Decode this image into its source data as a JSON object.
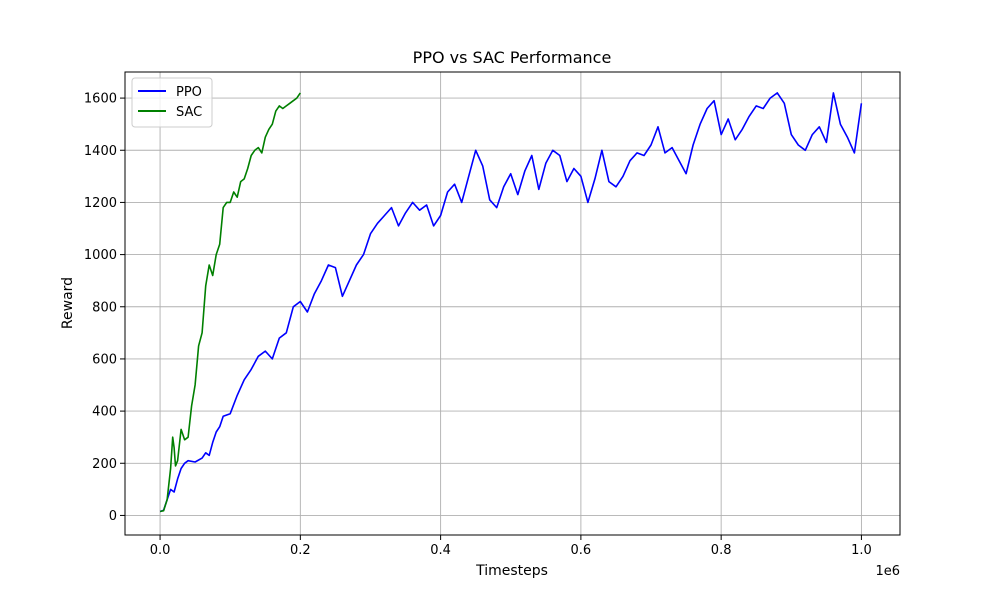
{
  "chart_data": {
    "type": "line",
    "title": "PPO vs SAC Performance",
    "xlabel": "Timesteps",
    "ylabel": "Reward",
    "x_offset_label": "1e6",
    "xlim": [
      -0.05,
      1.055
    ],
    "ylim": [
      -75,
      1700
    ],
    "x_scale_factor": 1000000,
    "xticks": [
      0.0,
      0.2,
      0.4,
      0.6,
      0.8,
      1.0
    ],
    "xtick_labels": [
      "0.0",
      "0.2",
      "0.4",
      "0.6",
      "0.8",
      "1.0"
    ],
    "yticks": [
      0,
      200,
      400,
      600,
      800,
      1000,
      1200,
      1400,
      1600
    ],
    "ytick_labels": [
      "0",
      "200",
      "400",
      "600",
      "800",
      "1000",
      "1200",
      "1400",
      "1600"
    ],
    "grid": true,
    "legend_position": "top-left",
    "series": [
      {
        "name": "PPO",
        "color": "#0000ff",
        "x": [
          0.0,
          0.005,
          0.01,
          0.015,
          0.02,
          0.025,
          0.03,
          0.035,
          0.04,
          0.05,
          0.06,
          0.065,
          0.07,
          0.075,
          0.08,
          0.085,
          0.09,
          0.1,
          0.11,
          0.12,
          0.13,
          0.14,
          0.15,
          0.16,
          0.17,
          0.18,
          0.19,
          0.2,
          0.21,
          0.22,
          0.23,
          0.24,
          0.25,
          0.26,
          0.27,
          0.28,
          0.29,
          0.3,
          0.31,
          0.32,
          0.33,
          0.34,
          0.35,
          0.36,
          0.37,
          0.38,
          0.39,
          0.4,
          0.41,
          0.42,
          0.43,
          0.44,
          0.45,
          0.46,
          0.47,
          0.48,
          0.49,
          0.5,
          0.51,
          0.52,
          0.53,
          0.54,
          0.55,
          0.56,
          0.57,
          0.58,
          0.59,
          0.6,
          0.61,
          0.62,
          0.63,
          0.64,
          0.65,
          0.66,
          0.67,
          0.68,
          0.69,
          0.7,
          0.71,
          0.72,
          0.73,
          0.74,
          0.75,
          0.76,
          0.77,
          0.78,
          0.79,
          0.8,
          0.81,
          0.82,
          0.83,
          0.84,
          0.85,
          0.86,
          0.87,
          0.88,
          0.89,
          0.9,
          0.91,
          0.92,
          0.93,
          0.94,
          0.95,
          0.96,
          0.97,
          0.98,
          0.99,
          1.0
        ],
        "y": [
          15,
          20,
          60,
          100,
          90,
          140,
          180,
          200,
          210,
          205,
          220,
          240,
          230,
          280,
          320,
          340,
          380,
          390,
          460,
          520,
          560,
          610,
          630,
          600,
          680,
          700,
          800,
          820,
          780,
          850,
          900,
          960,
          950,
          840,
          900,
          960,
          1000,
          1080,
          1120,
          1150,
          1180,
          1110,
          1160,
          1200,
          1170,
          1190,
          1110,
          1150,
          1240,
          1270,
          1200,
          1300,
          1400,
          1340,
          1210,
          1180,
          1260,
          1310,
          1230,
          1320,
          1380,
          1250,
          1350,
          1400,
          1380,
          1280,
          1330,
          1300,
          1200,
          1290,
          1400,
          1280,
          1260,
          1300,
          1360,
          1390,
          1380,
          1420,
          1490,
          1390,
          1410,
          1360,
          1310,
          1420,
          1500,
          1560,
          1590,
          1460,
          1520,
          1440,
          1480,
          1530,
          1570,
          1560,
          1600,
          1620,
          1580,
          1460,
          1420,
          1400,
          1460,
          1490,
          1430,
          1620,
          1500,
          1450,
          1390,
          1580
        ]
      },
      {
        "name": "SAC",
        "color": "#008000",
        "x": [
          0.0,
          0.005,
          0.01,
          0.015,
          0.018,
          0.02,
          0.022,
          0.025,
          0.03,
          0.035,
          0.04,
          0.045,
          0.05,
          0.055,
          0.06,
          0.065,
          0.07,
          0.075,
          0.08,
          0.085,
          0.09,
          0.095,
          0.1,
          0.105,
          0.11,
          0.115,
          0.12,
          0.125,
          0.13,
          0.135,
          0.14,
          0.145,
          0.15,
          0.155,
          0.16,
          0.165,
          0.17,
          0.175,
          0.18,
          0.185,
          0.19,
          0.195,
          0.2
        ],
        "y": [
          15,
          18,
          60,
          180,
          300,
          260,
          190,
          210,
          330,
          290,
          300,
          420,
          500,
          650,
          700,
          880,
          960,
          920,
          1000,
          1040,
          1180,
          1200,
          1200,
          1240,
          1220,
          1280,
          1290,
          1330,
          1380,
          1400,
          1410,
          1390,
          1450,
          1480,
          1500,
          1550,
          1570,
          1560,
          1570,
          1580,
          1590,
          1600,
          1620
        ]
      }
    ]
  }
}
